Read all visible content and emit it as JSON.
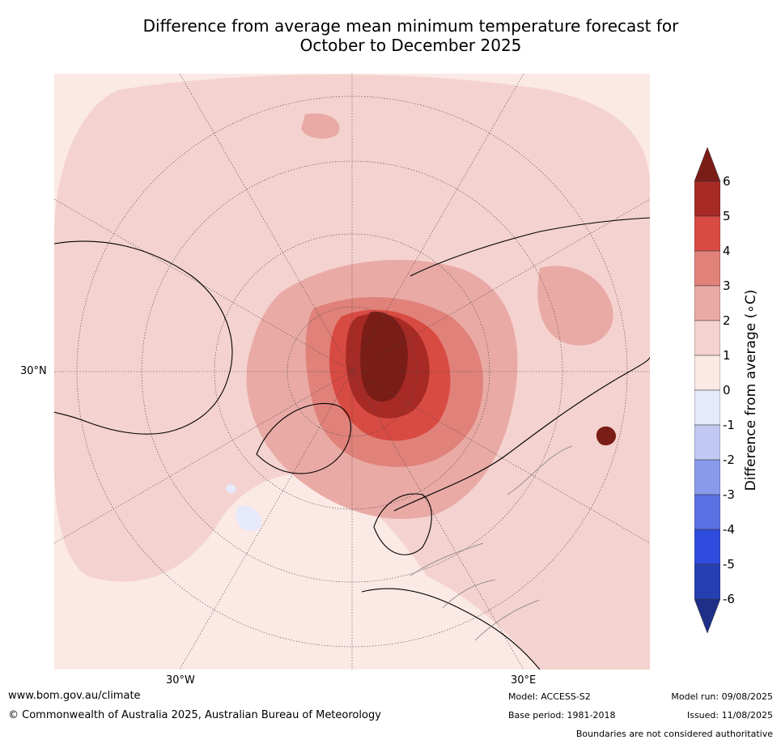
{
  "title_line1": "Difference from average mean minimum temperature forecast for",
  "title_line2": "October to December 2025",
  "map": {
    "projection": "north-polar-stereographic",
    "lat_label": "30°N",
    "lon_labels": [
      "30°W",
      "30°E"
    ],
    "colors": {
      "ocean_background": "#fbe9e6",
      "light_warm": "#f4d2cf",
      "warm": "#e9aaa5",
      "warmer": "#e0827a",
      "hot": "#d84b43",
      "very_hot": "#a72a25",
      "extreme": "#7b1d17",
      "cool": "#e5e9fb",
      "coastline": "#000000",
      "borders": "#808080"
    }
  },
  "colorbar": {
    "title": "Difference from average (∘C)",
    "ticks": [
      "6",
      "5",
      "4",
      "3",
      "2",
      "1",
      "0",
      "-1",
      "-2",
      "-3",
      "-4",
      "-5",
      "-6"
    ],
    "bins": [
      {
        "range": "5 to 6",
        "color": "#a72a25"
      },
      {
        "range": "4 to 5",
        "color": "#d84b43"
      },
      {
        "range": "3 to 4",
        "color": "#e0827a"
      },
      {
        "range": "2 to 3",
        "color": "#e9aaa5"
      },
      {
        "range": "1 to 2",
        "color": "#f4d2cf"
      },
      {
        "range": "0 to 1",
        "color": "#fbe9e6"
      },
      {
        "range": "-1 to 0",
        "color": "#e5e9fb"
      },
      {
        "range": "-2 to -1",
        "color": "#c1c9f3"
      },
      {
        "range": "-3 to -2",
        "color": "#8a9aeb"
      },
      {
        "range": "-4 to -3",
        "color": "#5b70e3"
      },
      {
        "range": "-5 to -4",
        "color": "#2f4cde"
      },
      {
        "range": "-6 to -5",
        "color": "#253fb3"
      }
    ],
    "above_color": "#7b1d17",
    "below_color": "#1f2f87"
  },
  "footer": {
    "website": "www.bom.gov.au/climate",
    "copyright": "© Commonwealth of Australia 2025, Australian Bureau of Meteorology",
    "model": "Model: ACCESS-S2",
    "base_period": "Base period: 1981-2018",
    "model_run": "Model run: 09/08/2025",
    "issued": "Issued: 11/08/2025",
    "disclaimer": "Boundaries are not considered authoritative"
  }
}
